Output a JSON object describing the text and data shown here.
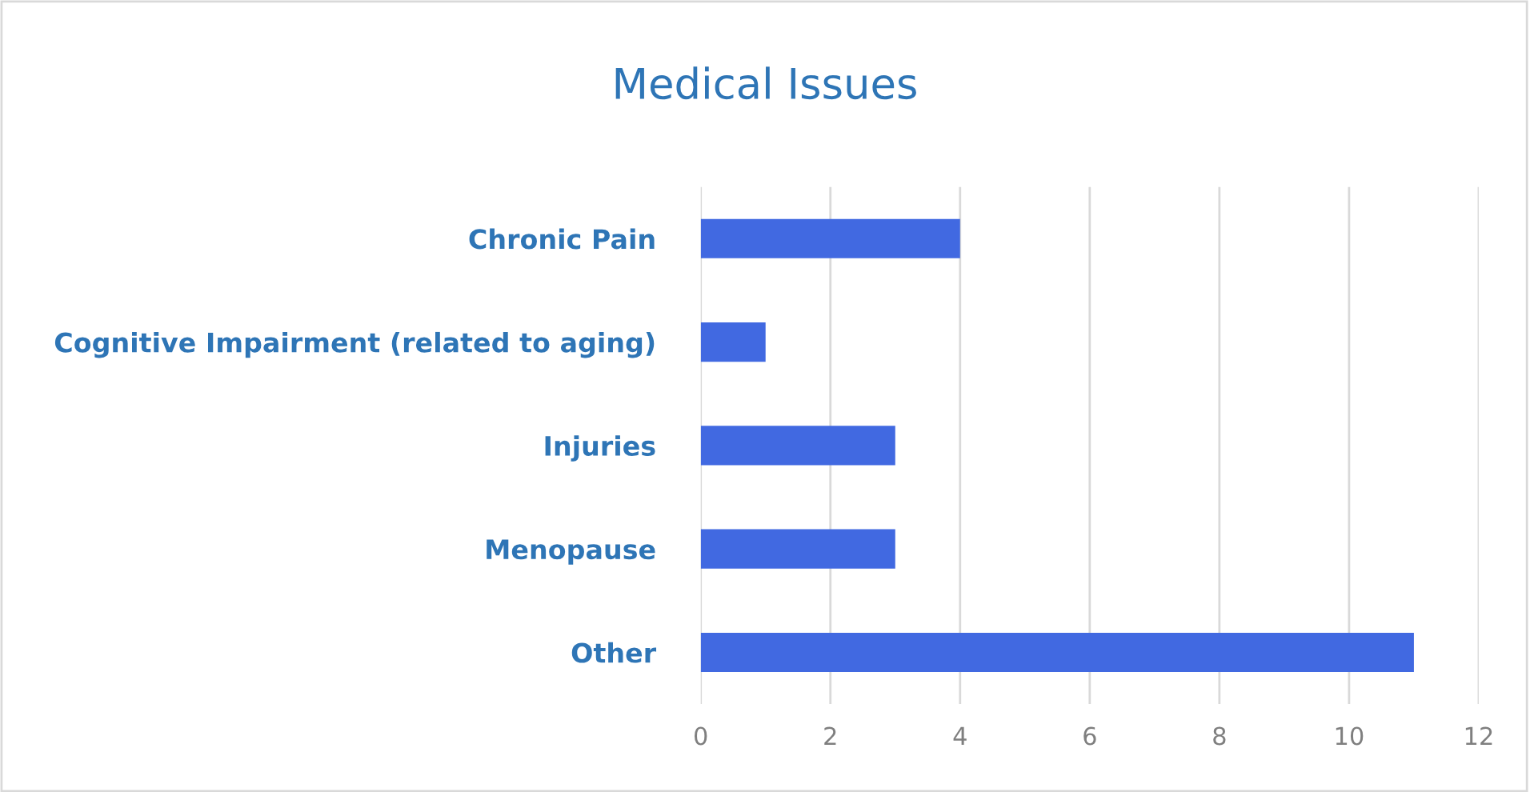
{
  "chart_data": {
    "type": "bar",
    "orientation": "horizontal",
    "title": "Medical Issues",
    "categories": [
      "Chronic Pain",
      "Cognitive Impairment (related to aging)",
      "Injuries",
      "Menopause",
      "Other"
    ],
    "values": [
      4,
      1,
      3,
      3,
      11
    ],
    "color": "#4169e1",
    "xlim": [
      0,
      12
    ],
    "xticks": [
      0,
      2,
      4,
      6,
      8,
      10,
      12
    ],
    "grid": "x"
  }
}
